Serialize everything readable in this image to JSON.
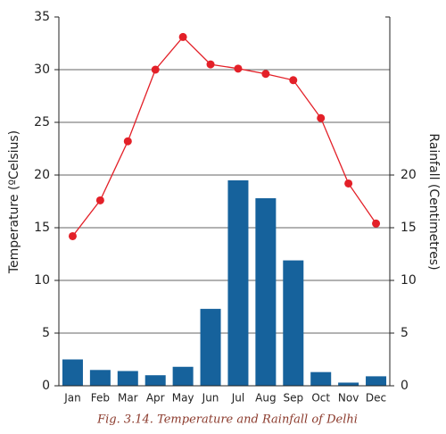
{
  "chart_data": {
    "type": "combo",
    "caption": "Fig. 3.14. Temperature and Rainfall of Delhi",
    "ylabel": "Temperature (ºCelsius)",
    "y2label": "Rainfall (Centimetres)",
    "categories": [
      "Jan",
      "Feb",
      "Mar",
      "Apr",
      "May",
      "Jun",
      "Jul",
      "Aug",
      "Sep",
      "Oct",
      "Nov",
      "Dec"
    ],
    "series": [
      {
        "name": "Temperature",
        "type": "line",
        "color": "#e32028",
        "values": [
          14.2,
          17.6,
          23.2,
          30.0,
          33.1,
          30.5,
          30.1,
          29.6,
          29.0,
          25.4,
          19.2,
          15.4
        ]
      },
      {
        "name": "Rainfall",
        "type": "bar",
        "axis": "y2",
        "color": "#16629c",
        "values": [
          2.5,
          1.5,
          1.4,
          1.0,
          1.8,
          7.3,
          19.5,
          17.8,
          11.9,
          1.3,
          0.3,
          0.9
        ]
      }
    ],
    "ylim": [
      0,
      35
    ],
    "yticks": [
      0,
      5,
      10,
      15,
      20,
      25,
      30,
      35
    ],
    "y2lim": [
      0,
      35
    ],
    "y2ticks": [
      0,
      5,
      10,
      15,
      20
    ],
    "grid": true
  }
}
